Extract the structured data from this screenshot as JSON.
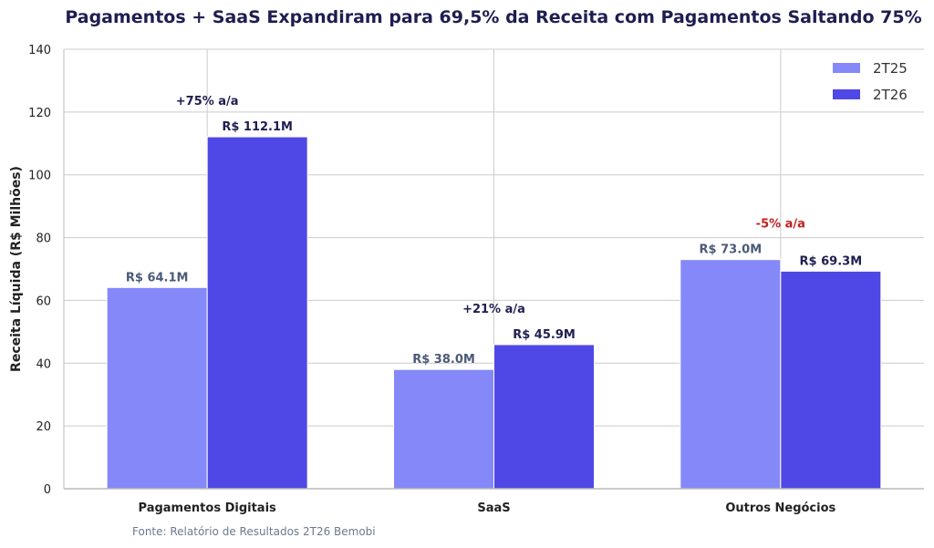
{
  "chart_data": {
    "type": "bar",
    "title": "Pagamentos + SaaS Expandiram para 69,5% da Receita com Pagamentos Saltando 75%",
    "ylabel": "Receita Líquida (R$ Milhões)",
    "xlabel": "",
    "ylim": [
      0,
      140
    ],
    "yticks": [
      "0",
      "20",
      "40",
      "60",
      "80",
      "100",
      "120",
      "140"
    ],
    "categories": [
      "Pagamentos Digitais",
      "SaaS",
      "Outros Negócios"
    ],
    "series": [
      {
        "name": "2T25",
        "color": "#8488f8",
        "label_color": "#4a5a78",
        "values": [
          64.1,
          38.0,
          73.0
        ],
        "labels": [
          "R$ 64.1M",
          "R$ 38.0M",
          "R$ 73.0M"
        ]
      },
      {
        "name": "2T26",
        "color": "#5048e6",
        "label_color": "#1e1e50",
        "values": [
          112.1,
          45.9,
          69.3
        ],
        "labels": [
          "R$ 112.1M",
          "R$ 45.9M",
          "R$ 69.3M"
        ]
      }
    ],
    "annotations": [
      {
        "text": "+75% a/a",
        "category_index": 0,
        "color": "#1e1e50"
      },
      {
        "text": "+21% a/a",
        "category_index": 1,
        "color": "#1e1e50"
      },
      {
        "text": "-5% a/a",
        "category_index": 2,
        "color": "#c02020"
      }
    ],
    "grid": true,
    "legend_position": "top-right",
    "title_color": "#1e1e50",
    "source_text": "Fonte: Relatório de Resultados 2T26 Bemobi",
    "source_color": "#6a7a90"
  }
}
